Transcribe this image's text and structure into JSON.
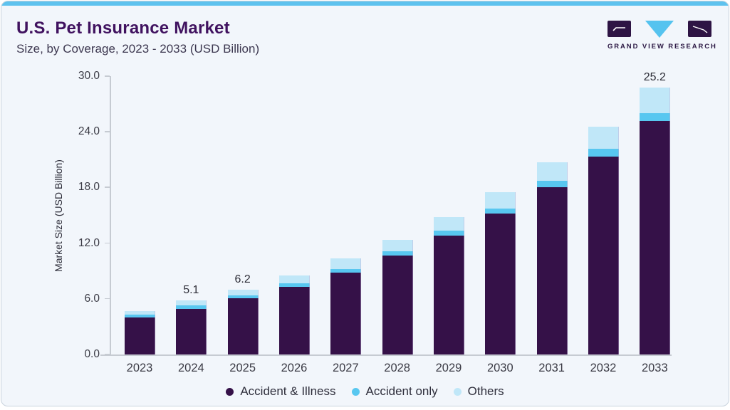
{
  "header": {
    "title": "U.S. Pet Insurance Market",
    "subtitle": "Size, by Coverage, 2023 - 2033 (USD Billion)"
  },
  "logo": {
    "brand_text": "GRAND VIEW RESEARCH",
    "mark_color": "#2e1444",
    "triangle_color": "#55c3ef"
  },
  "colors": {
    "accent_strip": "#5ec2ee",
    "title_text": "#40125f",
    "axis": "#c6cbd2",
    "accident_illness": "#351148",
    "accident_only": "#58c7f0",
    "others": "#c0e7f8"
  },
  "chart_data": {
    "type": "bar",
    "stacked": true,
    "title": "U.S. Pet Insurance Market Size, by Coverage, 2023 - 2033 (USD Billion)",
    "xlabel": "",
    "ylabel": "Market Size (USD Billion)",
    "ylim": [
      0,
      30
    ],
    "yticks": [
      {
        "value": 30,
        "label": "30.0"
      },
      {
        "value": 24,
        "label": "24.0"
      },
      {
        "value": 18,
        "label": "18.0"
      },
      {
        "value": 12,
        "label": "12.0"
      },
      {
        "value": 6,
        "label": "6.0"
      },
      {
        "value": 0,
        "label": "0.0"
      }
    ],
    "grid": false,
    "legend_position": "bottom",
    "categories": [
      "2023",
      "2024",
      "2025",
      "2026",
      "2027",
      "2028",
      "2029",
      "2030",
      "2031",
      "2032",
      "2033"
    ],
    "series": [
      {
        "name": "Accident & Illness",
        "color_key": "accident_illness",
        "values": [
          3.5,
          4.32,
          5.29,
          6.41,
          7.75,
          9.33,
          11.25,
          13.32,
          15.78,
          18.7,
          22.06
        ]
      },
      {
        "name": "Accident only",
        "color_key": "accident_only",
        "values": [
          0.29,
          0.3,
          0.29,
          0.3,
          0.3,
          0.44,
          0.43,
          0.49,
          0.61,
          0.72,
          0.72
        ]
      },
      {
        "name": "Others",
        "color_key": "others",
        "values": [
          0.3,
          0.47,
          0.52,
          0.74,
          1.01,
          1.08,
          1.3,
          1.53,
          1.79,
          2.08,
          2.42
        ]
      }
    ],
    "totals_estimated": [
      4.1,
      5.1,
      6.2,
      7.4,
      9.1,
      10.9,
      13.0,
      15.3,
      18.2,
      21.5,
      25.2
    ],
    "bar_labels": {
      "2024": "5.1",
      "2025": "6.2",
      "2033": "25.2"
    }
  }
}
